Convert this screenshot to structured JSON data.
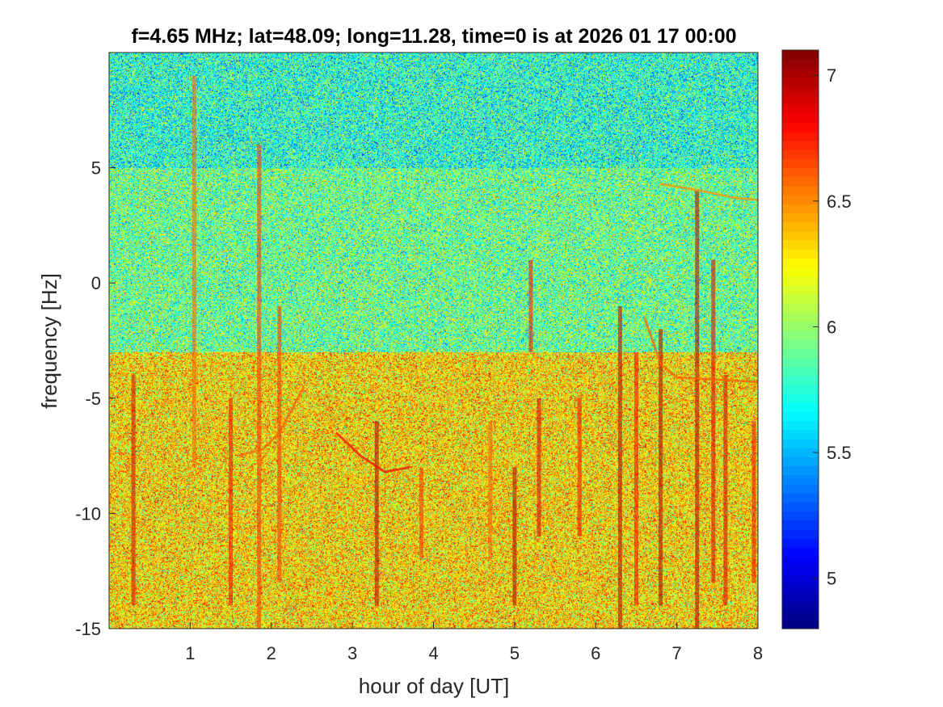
{
  "chart_data": {
    "type": "heatmap",
    "title": "f=4.65 MHz;  lat=48.09; long=11.28, time=0 is at 2026 01 17 00:00",
    "xlabel": "hour of day [UT]",
    "ylabel": "frequency [Hz]",
    "xlim": [
      0,
      8
    ],
    "ylim": [
      -15,
      10
    ],
    "xticks": [
      1,
      2,
      3,
      4,
      5,
      6,
      7,
      8
    ],
    "yticks": [
      -15,
      -10,
      -5,
      0,
      5
    ],
    "colorbar": {
      "range": [
        4.8,
        7.1
      ],
      "ticks": [
        5,
        5.5,
        6,
        6.5,
        7
      ],
      "colormap": "jet"
    },
    "background_levels": [
      {
        "frequency_range": [
          5,
          10
        ],
        "typical_value": 5.75
      },
      {
        "frequency_range": [
          -3,
          5
        ],
        "typical_value": 5.9
      },
      {
        "frequency_range": [
          -15,
          -3
        ],
        "typical_value": 6.3
      }
    ],
    "vertical_streaks": [
      {
        "hour": 0.3,
        "freq_range": [
          -14,
          -4
        ],
        "value": 6.9
      },
      {
        "hour": 1.05,
        "freq_range": [
          -8,
          9
        ],
        "value": 6.6
      },
      {
        "hour": 1.5,
        "freq_range": [
          -14,
          -5
        ],
        "value": 6.8
      },
      {
        "hour": 1.85,
        "freq_range": [
          -15,
          6
        ],
        "value": 6.7
      },
      {
        "hour": 2.1,
        "freq_range": [
          -13,
          -1
        ],
        "value": 6.7
      },
      {
        "hour": 3.3,
        "freq_range": [
          -14,
          -6
        ],
        "value": 7.0
      },
      {
        "hour": 3.85,
        "freq_range": [
          -12,
          -8
        ],
        "value": 6.7
      },
      {
        "hour": 4.7,
        "freq_range": [
          -12,
          -6
        ],
        "value": 6.6
      },
      {
        "hour": 5.0,
        "freq_range": [
          -14,
          -8
        ],
        "value": 7.0
      },
      {
        "hour": 5.2,
        "freq_range": [
          -3,
          1
        ],
        "value": 6.8
      },
      {
        "hour": 5.3,
        "freq_range": [
          -11,
          -5
        ],
        "value": 6.9
      },
      {
        "hour": 5.8,
        "freq_range": [
          -11,
          -5
        ],
        "value": 6.8
      },
      {
        "hour": 6.3,
        "freq_range": [
          -15,
          -1
        ],
        "value": 7.0
      },
      {
        "hour": 6.5,
        "freq_range": [
          -14,
          -3
        ],
        "value": 6.8
      },
      {
        "hour": 6.8,
        "freq_range": [
          -14,
          -2
        ],
        "value": 7.0
      },
      {
        "hour": 7.25,
        "freq_range": [
          -15,
          4
        ],
        "value": 7.0
      },
      {
        "hour": 7.45,
        "freq_range": [
          -13,
          1
        ],
        "value": 6.9
      },
      {
        "hour": 7.6,
        "freq_range": [
          -14,
          -4
        ],
        "value": 6.9
      },
      {
        "hour": 7.95,
        "freq_range": [
          -13,
          -6
        ],
        "value": 6.8
      }
    ],
    "curved_traces": [
      {
        "points": [
          [
            1.6,
            -7.5
          ],
          [
            1.9,
            -7.2
          ],
          [
            2.1,
            -6.5
          ],
          [
            2.4,
            -4.5
          ]
        ],
        "value": 6.6
      },
      {
        "points": [
          [
            2.8,
            -6.5
          ],
          [
            3.1,
            -7.5
          ],
          [
            3.4,
            -8.2
          ],
          [
            3.7,
            -8.0
          ]
        ],
        "value": 6.8
      },
      {
        "points": [
          [
            6.6,
            -1.5
          ],
          [
            6.8,
            -3.5
          ],
          [
            7.0,
            -4.1
          ],
          [
            8.0,
            -4.3
          ]
        ],
        "value": 6.6
      },
      {
        "points": [
          [
            6.8,
            4.3
          ],
          [
            7.3,
            4.0
          ],
          [
            7.7,
            3.7
          ],
          [
            8.0,
            3.6
          ]
        ],
        "value": 6.5
      }
    ]
  }
}
